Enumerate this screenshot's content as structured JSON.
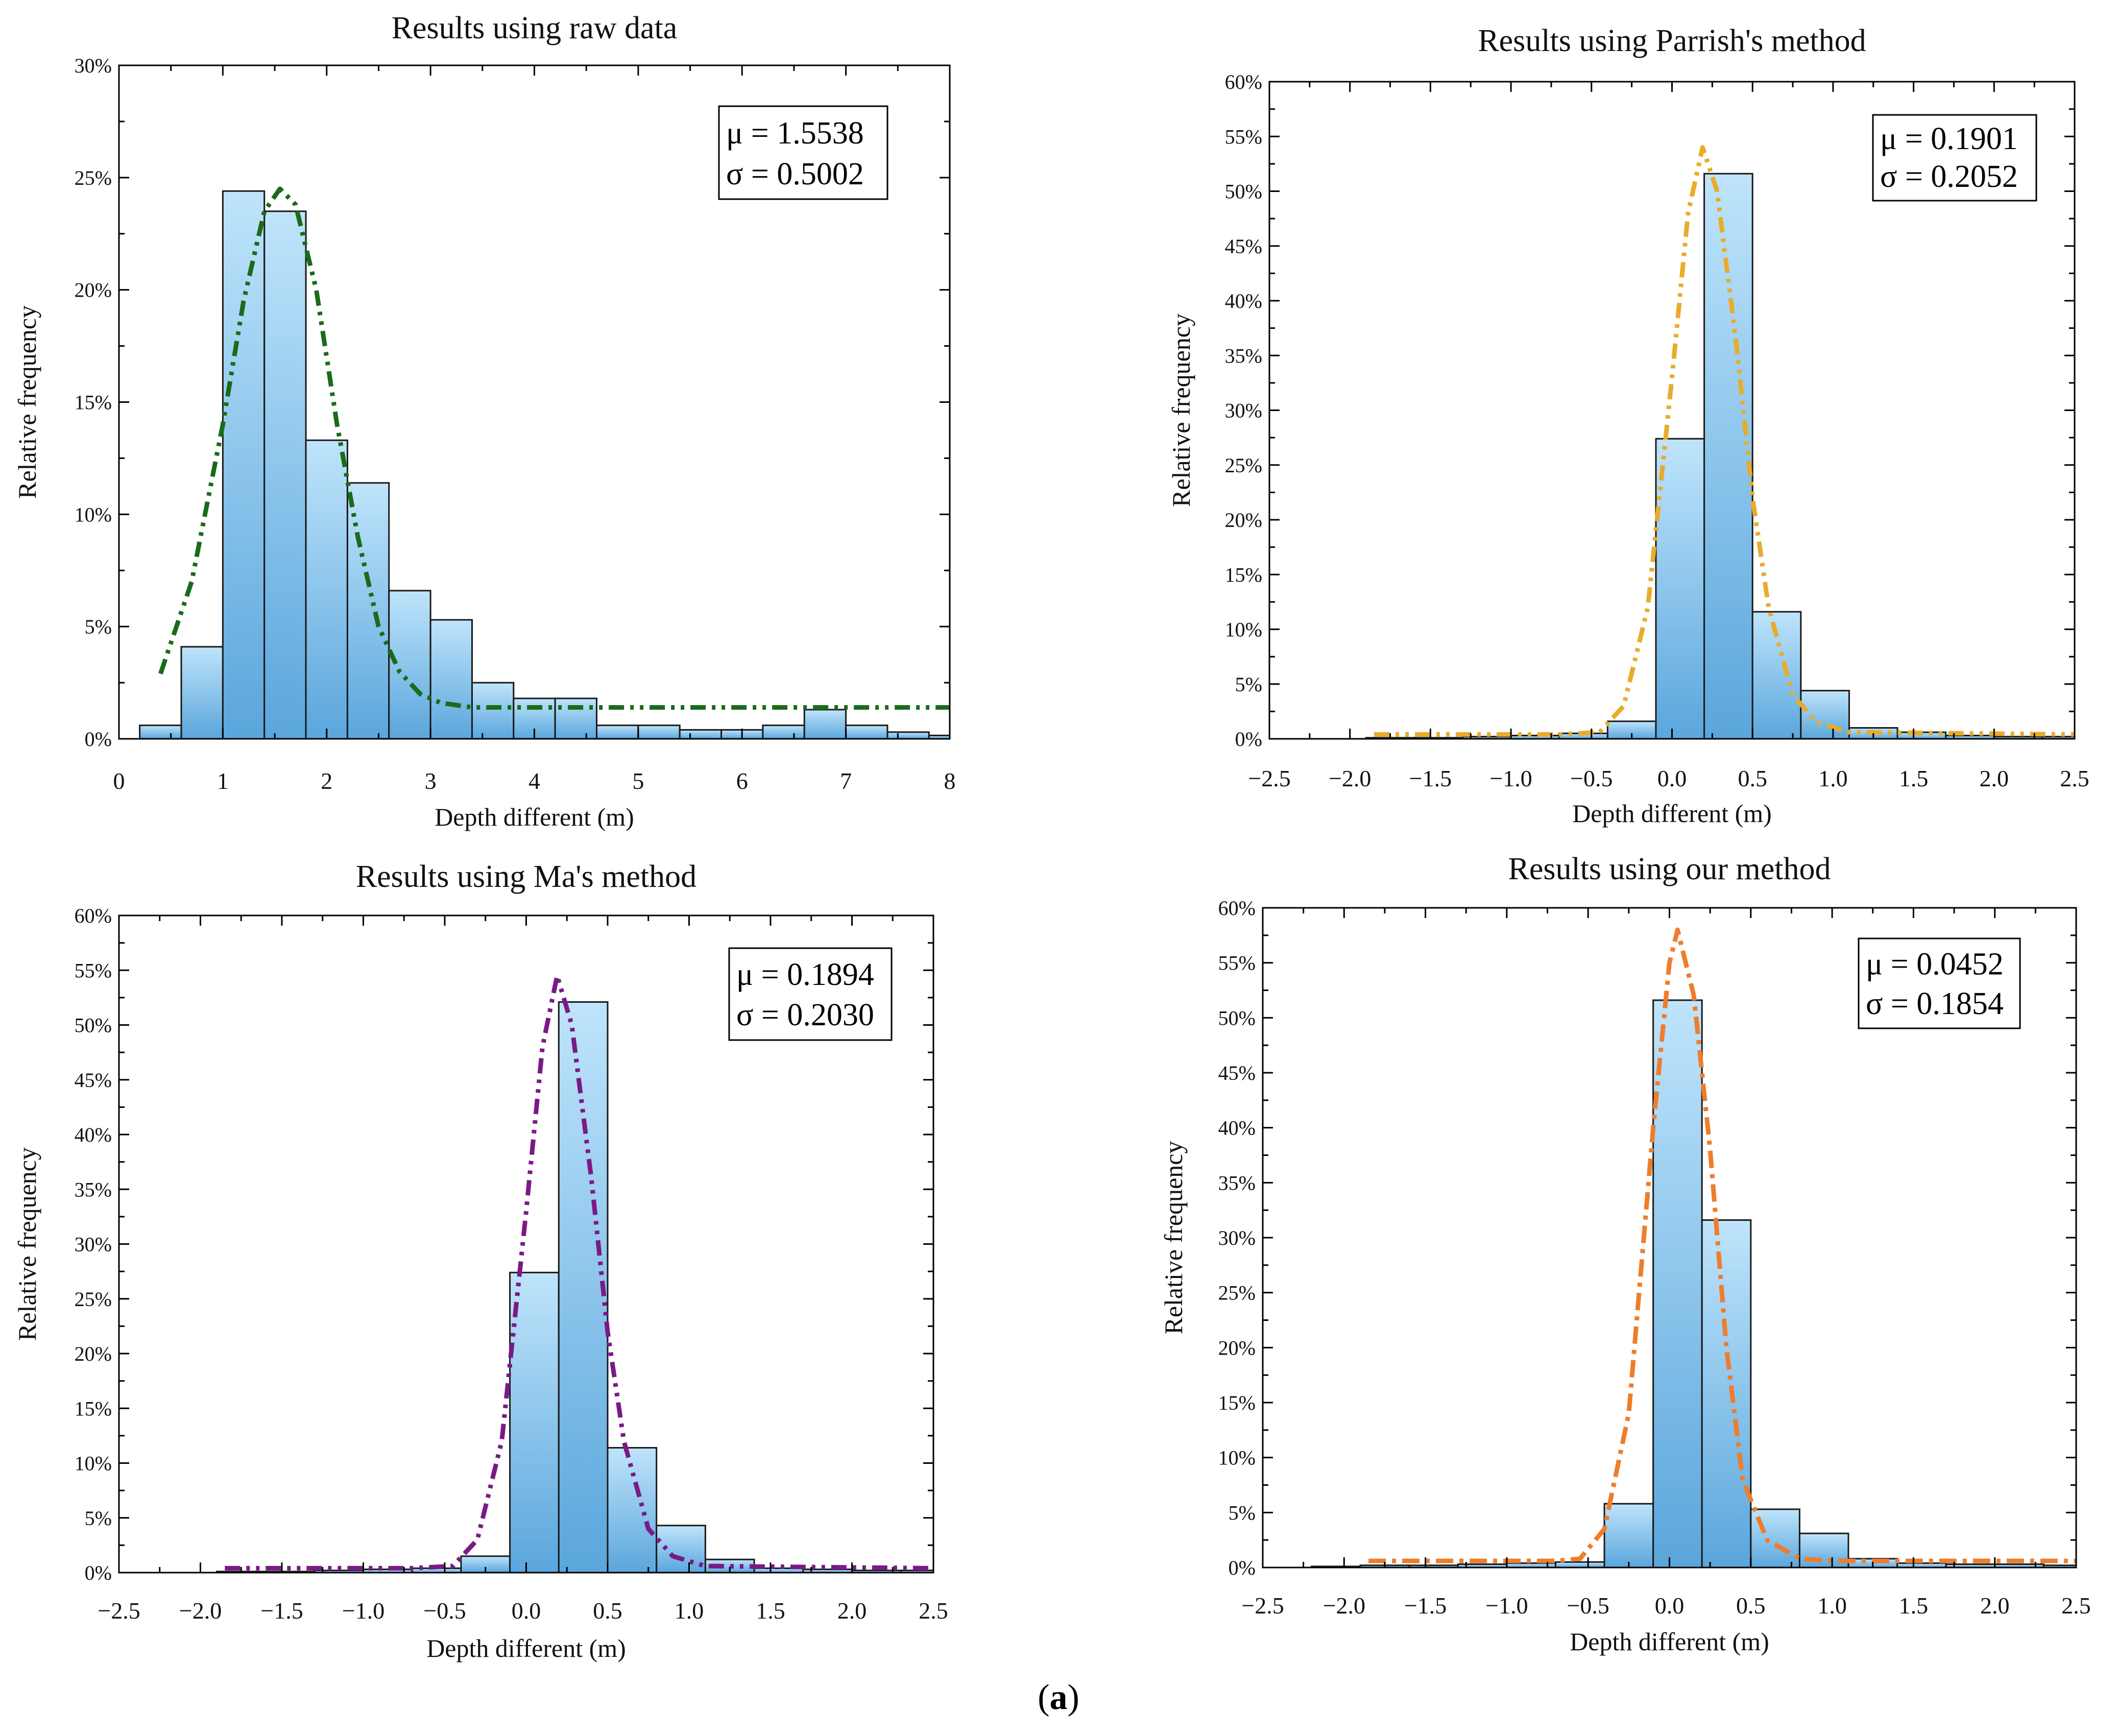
{
  "caption": {
    "open": "(",
    "letter": "a",
    "close": ")"
  },
  "colors": {
    "bar_top": "#bfe4fb",
    "bar_bottom": "#5aa6dc",
    "bar_edge": "#1a1a1a"
  },
  "chart_data": [
    {
      "type": "bar",
      "title": "Results using raw data",
      "xlabel": "Depth different (m)",
      "ylabel": "Relative frequency",
      "xlim": [
        0,
        8
      ],
      "ylim": [
        0,
        30
      ],
      "xticks": [
        "0",
        "1",
        "2",
        "3",
        "4",
        "5",
        "6",
        "7",
        "8"
      ],
      "yticks": [
        "0%",
        "5%",
        "10%",
        "15%",
        "20%",
        "25%",
        "30%"
      ],
      "bin_edges": [
        0.2,
        0.6,
        1.0,
        1.4,
        1.8,
        2.2,
        2.6,
        3.0,
        3.4,
        3.8,
        4.2,
        4.6,
        5.0,
        5.4,
        5.8,
        6.2,
        6.6,
        7.0,
        7.4,
        7.8,
        8.0
      ],
      "values": [
        0.6,
        4.1,
        24.4,
        23.5,
        13.3,
        11.4,
        6.6,
        5.3,
        2.5,
        1.8,
        1.8,
        0.6,
        0.6,
        0.4,
        0.4,
        0.6,
        1.3,
        0.6,
        0.3,
        0.15
      ],
      "fit": {
        "style": "dash-dot-dot",
        "color": "#1a6b1a",
        "x": [
          0.4,
          0.7,
          1.0,
          1.2,
          1.4,
          1.55,
          1.7,
          1.9,
          2.1,
          2.3,
          2.5,
          2.7,
          2.9,
          3.1,
          3.4,
          3.7,
          8.0
        ],
        "y": [
          2.9,
          7.0,
          14.0,
          19.5,
          23.5,
          24.5,
          23.8,
          20.0,
          14.0,
          9.0,
          5.0,
          3.0,
          2.0,
          1.6,
          1.4,
          1.4,
          1.4
        ]
      },
      "stats": {
        "mu": "μ = 1.5538",
        "sigma": "σ = 0.5002"
      }
    },
    {
      "type": "bar",
      "title": "Results using Parrish's method",
      "xlabel": "Depth different (m)",
      "ylabel": "Relative frequency",
      "xlim": [
        -2.5,
        2.5
      ],
      "ylim": [
        0,
        60
      ],
      "xticks": [
        "−2.5",
        "−2.0",
        "−1.5",
        "−1.0",
        "−0.5",
        "0.0",
        "0.5",
        "1.0",
        "1.5",
        "2.0",
        "2.5"
      ],
      "yticks": [
        "0%",
        "5%",
        "10%",
        "15%",
        "20%",
        "25%",
        "30%",
        "35%",
        "40%",
        "45%",
        "50%",
        "55%",
        "60%"
      ],
      "bin_edges": [
        -2.5,
        -2.2,
        -1.9,
        -1.6,
        -1.3,
        -1.0,
        -0.7,
        -0.4,
        -0.1,
        0.2,
        0.5,
        0.8,
        1.1,
        1.4,
        1.7,
        2.0,
        2.3,
        2.5
      ],
      "values": [
        0.0,
        0.0,
        0.1,
        0.1,
        0.2,
        0.3,
        0.5,
        1.6,
        27.4,
        51.6,
        11.6,
        4.4,
        1.0,
        0.6,
        0.3,
        0.2,
        0.2
      ],
      "fit": {
        "style": "dash-dot-dot",
        "color": "#e8ac2c",
        "x": [
          -1.85,
          -1.2,
          -0.7,
          -0.45,
          -0.3,
          -0.15,
          0.0,
          0.1,
          0.19,
          0.28,
          0.4,
          0.5,
          0.6,
          0.75,
          0.9,
          1.1,
          2.5
        ],
        "y": [
          0.4,
          0.4,
          0.4,
          0.6,
          3.0,
          12.0,
          33.0,
          48.0,
          54.0,
          50.0,
          36.0,
          22.0,
          12.0,
          4.0,
          1.5,
          0.6,
          0.4
        ]
      },
      "stats": {
        "mu": "μ = 0.1901",
        "sigma": "σ = 0.2052"
      }
    },
    {
      "type": "bar",
      "title": "Results using Ma's method",
      "xlabel": "Depth different (m)",
      "ylabel": "Relative frequency",
      "xlim": [
        -2.5,
        2.5
      ],
      "ylim": [
        0,
        60
      ],
      "xticks": [
        "−2.5",
        "−2.0",
        "−1.5",
        "−1.0",
        "−0.5",
        "0.0",
        "0.5",
        "1.0",
        "1.5",
        "2.0",
        "2.5"
      ],
      "yticks": [
        "0%",
        "5%",
        "10%",
        "15%",
        "20%",
        "25%",
        "30%",
        "35%",
        "40%",
        "45%",
        "50%",
        "55%",
        "60%"
      ],
      "bin_edges": [
        -2.5,
        -2.2,
        -1.9,
        -1.6,
        -1.3,
        -1.0,
        -0.7,
        -0.4,
        -0.1,
        0.2,
        0.5,
        0.8,
        1.1,
        1.4,
        1.7,
        2.0,
        2.3,
        2.5
      ],
      "values": [
        0.0,
        0.0,
        0.1,
        0.1,
        0.2,
        0.3,
        0.4,
        1.5,
        27.4,
        52.1,
        11.4,
        4.3,
        1.2,
        0.4,
        0.3,
        0.2,
        0.2
      ],
      "fit": {
        "style": "dash-dot-dot",
        "color": "#7a1a86",
        "x": [
          -1.85,
          -1.2,
          -0.7,
          -0.45,
          -0.3,
          -0.15,
          0.0,
          0.1,
          0.19,
          0.28,
          0.4,
          0.5,
          0.6,
          0.75,
          0.9,
          1.1,
          2.5
        ],
        "y": [
          0.4,
          0.4,
          0.4,
          0.6,
          3.0,
          12.0,
          33.0,
          48.0,
          54.5,
          50.0,
          36.0,
          22.0,
          12.0,
          4.0,
          1.5,
          0.6,
          0.4
        ]
      },
      "stats": {
        "mu": "μ = 0.1894",
        "sigma": "σ = 0.2030"
      }
    },
    {
      "type": "bar",
      "title": "Results using our method",
      "xlabel": "Depth different (m)",
      "ylabel": "Relative frequency",
      "xlim": [
        -2.5,
        2.5
      ],
      "ylim": [
        0,
        60
      ],
      "xticks": [
        "−2.5",
        "−2.0",
        "−1.5",
        "−1.0",
        "−0.5",
        "0.0",
        "0.5",
        "1.0",
        "1.5",
        "2.0",
        "2.5"
      ],
      "yticks": [
        "0%",
        "5%",
        "10%",
        "15%",
        "20%",
        "25%",
        "30%",
        "35%",
        "40%",
        "45%",
        "50%",
        "55%",
        "60%"
      ],
      "bin_edges": [
        -2.5,
        -2.2,
        -1.9,
        -1.6,
        -1.3,
        -1.0,
        -0.7,
        -0.4,
        -0.1,
        0.2,
        0.5,
        0.8,
        1.1,
        1.4,
        1.7,
        2.0,
        2.3,
        2.5
      ],
      "values": [
        0.0,
        0.1,
        0.2,
        0.2,
        0.3,
        0.4,
        0.5,
        5.8,
        51.6,
        31.6,
        5.3,
        3.1,
        0.8,
        0.4,
        0.3,
        0.3,
        0.2
      ],
      "fit": {
        "style": "dash-dot",
        "color": "#ee7d2c",
        "x": [
          -1.85,
          -1.2,
          -0.7,
          -0.55,
          -0.4,
          -0.25,
          -0.1,
          0.0,
          0.05,
          0.15,
          0.25,
          0.35,
          0.45,
          0.6,
          0.8,
          1.0,
          2.5
        ],
        "y": [
          0.6,
          0.6,
          0.6,
          0.8,
          3.5,
          14.0,
          40.0,
          55.0,
          58.0,
          52.0,
          38.0,
          20.0,
          8.0,
          2.5,
          0.8,
          0.6,
          0.6
        ]
      },
      "stats": {
        "mu": "μ = 0.0452",
        "sigma": "σ = 0.1854"
      }
    }
  ]
}
